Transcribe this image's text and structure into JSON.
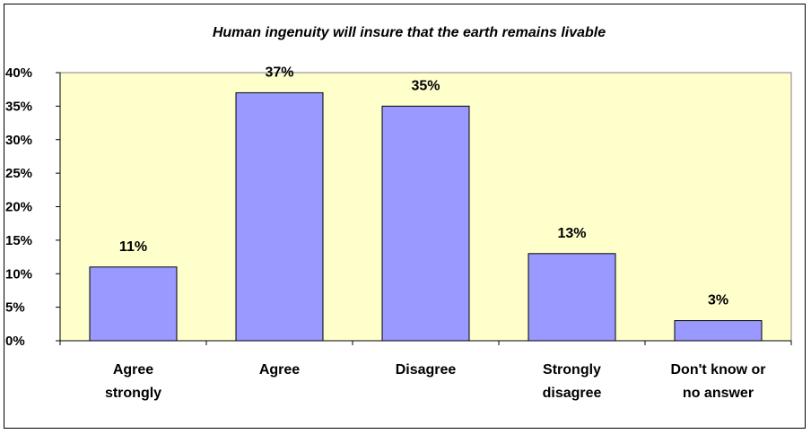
{
  "chart_data": {
    "type": "bar",
    "title": "Human ingenuity will insure that the earth remains livable",
    "categories": [
      [
        "Agree",
        "strongly"
      ],
      [
        "Agree"
      ],
      [
        "Disagree"
      ],
      [
        "Strongly",
        "disagree"
      ],
      [
        "Don't know or",
        "no answer"
      ]
    ],
    "values": [
      11,
      37,
      35,
      13,
      3
    ],
    "data_labels": [
      "11%",
      "37%",
      "35%",
      "13%",
      "3%"
    ],
    "ylim": [
      0,
      40
    ],
    "ytick_values": [
      0,
      5,
      10,
      15,
      20,
      25,
      30,
      35,
      40
    ],
    "ytick_labels": [
      "0%",
      "5%",
      "10%",
      "15%",
      "20%",
      "25%",
      "30%",
      "35%",
      "40%"
    ],
    "colors": {
      "bar": "#9999ff",
      "bar_edge": "#000000",
      "plot_background": "#ffffcc"
    },
    "grid": false,
    "legend": "none"
  }
}
